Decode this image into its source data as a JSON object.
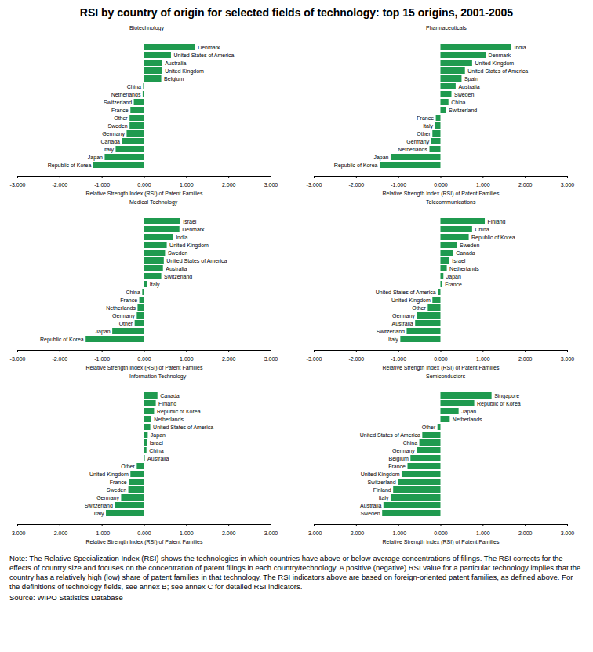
{
  "title": "RSI by country of origin for selected fields of technology: top 15 origins, 2001-2005",
  "note": "Note: The Relative Specialization Index (RSI) shows the technologies in which countries have above or below-average concentrations of filings. The RSI corrects for the effects of country size and focuses on the concentration of patent filings in each country/technology. A positive (negative) RSI value for a particular technology implies that the country has a relatively high (low) share of patent families in that technology. The RSI indicators above are based on foreign-oriented patent families, as defined above. For the definitions of technology fields, see annex B; see annex C for detailed RSI indicators.",
  "source": "Source: WIPO Statistics Database",
  "chart_data": [
    {
      "type": "bar",
      "title": "Biotechnology",
      "orientation": "horizontal",
      "color": "#1f9a4f",
      "tick_labels": "x",
      "xlabel": "Relative Strength Index (RSI) of Patent Families",
      "xlim": [
        -3,
        3
      ],
      "xticks": [
        {
          "value": -3,
          "label": "-3.000"
        },
        {
          "value": -2,
          "label": "-2.000"
        },
        {
          "value": -1,
          "label": "-1.000"
        },
        {
          "value": 0,
          "label": "0.000"
        },
        {
          "value": 1,
          "label": "1.000"
        },
        {
          "value": 2,
          "label": "2.000"
        },
        {
          "value": 3,
          "label": "3.000"
        }
      ],
      "categories": [
        "Denmark",
        "United States of America",
        "Australia",
        "United Kingdom",
        "Belgium",
        "China",
        "Netherlands",
        "Switzerland",
        "France",
        "Other",
        "Sweden",
        "Germany",
        "Canada",
        "Italy",
        "Japan",
        "Republic of Korea"
      ],
      "values": [
        1.21,
        0.64,
        0.43,
        0.43,
        0.41,
        -0.02,
        -0.03,
        -0.24,
        -0.32,
        -0.34,
        -0.34,
        -0.41,
        -0.52,
        -0.67,
        -0.93,
        -1.2
      ]
    },
    {
      "type": "bar",
      "title": "Pharmaceuticals",
      "orientation": "horizontal",
      "color": "#1f9a4f",
      "tick_labels": "x",
      "xlabel": "Relative Strength Index (RSI) of Patent Families",
      "xlim": [
        -3,
        3
      ],
      "xticks": [
        {
          "value": -3,
          "label": "-3.000"
        },
        {
          "value": -2,
          "label": "-2.000"
        },
        {
          "value": -1,
          "label": "-1.000"
        },
        {
          "value": 0,
          "label": "0.000"
        },
        {
          "value": 1,
          "label": "1.000"
        },
        {
          "value": 2,
          "label": "2.000"
        },
        {
          "value": 3,
          "label": "3.000"
        }
      ],
      "categories": [
        "India",
        "Denmark",
        "United Kingdom",
        "United States of America",
        "Spain",
        "Australia",
        "Sweden",
        "China",
        "Switzerland",
        "France",
        "Italy",
        "Other",
        "Germany",
        "Netherlands",
        "Japan",
        "Republic of Korea"
      ],
      "values": [
        1.68,
        1.07,
        0.75,
        0.58,
        0.5,
        0.36,
        0.26,
        0.19,
        0.13,
        -0.11,
        -0.13,
        -0.19,
        -0.22,
        -0.26,
        -1.18,
        -1.44
      ]
    },
    {
      "type": "bar",
      "title": "Medical Technology",
      "orientation": "horizontal",
      "color": "#1f9a4f",
      "tick_labels": "x",
      "xlabel": "Relative Strength Index (RSI) of Patent Families",
      "xlim": [
        -3,
        3
      ],
      "xticks": [
        {
          "value": -3,
          "label": "-3.000"
        },
        {
          "value": -2,
          "label": "-2.000"
        },
        {
          "value": -1,
          "label": "-1.000"
        },
        {
          "value": 0,
          "label": "0.000"
        },
        {
          "value": 1,
          "label": "1.000"
        },
        {
          "value": 2,
          "label": "2.000"
        },
        {
          "value": 3,
          "label": "3.000"
        }
      ],
      "categories": [
        "Israel",
        "Denmark",
        "India",
        "United Kingdom",
        "Sweden",
        "United States of America",
        "Australia",
        "Switzerland",
        "Italy",
        "China",
        "France",
        "Netherlands",
        "Germany",
        "Other",
        "Japan",
        "Republic of Korea"
      ],
      "values": [
        0.86,
        0.84,
        0.69,
        0.54,
        0.5,
        0.47,
        0.45,
        0.41,
        0.07,
        -0.04,
        -0.11,
        -0.15,
        -0.17,
        -0.22,
        -0.75,
        -1.38
      ]
    },
    {
      "type": "bar",
      "title": "Telecommunications",
      "orientation": "horizontal",
      "color": "#1f9a4f",
      "tick_labels": "x",
      "xlabel": "Relative Strength Index (RSI) of Patent Families",
      "xlim": [
        -3,
        3
      ],
      "xticks": [
        {
          "value": -3,
          "label": "-3.000"
        },
        {
          "value": -2,
          "label": "-2.000"
        },
        {
          "value": -1,
          "label": "-1.000"
        },
        {
          "value": 0,
          "label": "0.000"
        },
        {
          "value": 1,
          "label": "1.000"
        },
        {
          "value": 2,
          "label": "2.000"
        },
        {
          "value": 3,
          "label": "3.000"
        }
      ],
      "categories": [
        "Finland",
        "China",
        "Republic of Korea",
        "Sweden",
        "Canada",
        "Israel",
        "Netherlands",
        "Japan",
        "France",
        "United States of America",
        "United Kingdom",
        "Other",
        "Germany",
        "Australia",
        "Switzerland",
        "Italy"
      ],
      "values": [
        1.05,
        0.75,
        0.67,
        0.39,
        0.3,
        0.21,
        0.15,
        0.07,
        0.04,
        -0.06,
        -0.19,
        -0.3,
        -0.56,
        -0.6,
        -0.8,
        -0.95
      ]
    },
    {
      "type": "bar",
      "title": "Information Technology",
      "orientation": "horizontal",
      "color": "#1f9a4f",
      "tick_labels": "x",
      "xlabel": "Relative Strength Index (RSI) of Patent Families",
      "xlim": [
        -3,
        3
      ],
      "xticks": [
        {
          "value": -3,
          "label": "-3.000"
        },
        {
          "value": -2,
          "label": "-2.000"
        },
        {
          "value": -1,
          "label": "-1.000"
        },
        {
          "value": 0,
          "label": "0.000"
        },
        {
          "value": 1,
          "label": "1.000"
        },
        {
          "value": 2,
          "label": "2.000"
        },
        {
          "value": 3,
          "label": "3.000"
        }
      ],
      "categories": [
        "Canada",
        "Finland",
        "Republic of Korea",
        "Netherlands",
        "United States of America",
        "Japan",
        "Israel",
        "China",
        "Australia",
        "Other",
        "United Kingdom",
        "France",
        "Sweden",
        "Germany",
        "Switzerland",
        "Italy"
      ],
      "values": [
        0.32,
        0.28,
        0.24,
        0.17,
        0.15,
        0.09,
        0.07,
        0.06,
        0.02,
        -0.17,
        -0.32,
        -0.36,
        -0.37,
        -0.54,
        -0.69,
        -0.9
      ]
    },
    {
      "type": "bar",
      "title": "Semiconductors",
      "orientation": "horizontal",
      "color": "#1f9a4f",
      "tick_labels": "x",
      "xlabel": "Relative Strength Index (RSI) of Patent Families",
      "xlim": [
        -3,
        3
      ],
      "xticks": [
        {
          "value": -3,
          "label": "-3.000"
        },
        {
          "value": -2,
          "label": "-2.000"
        },
        {
          "value": -1,
          "label": "-1.000"
        },
        {
          "value": 0,
          "label": "0.000"
        },
        {
          "value": 1,
          "label": "1.000"
        },
        {
          "value": 2,
          "label": "2.000"
        },
        {
          "value": 3,
          "label": "3.000"
        }
      ],
      "categories": [
        "Singapore",
        "Republic of Korea",
        "Japan",
        "Netherlands",
        "Other",
        "United States of America",
        "China",
        "Germany",
        "Belgium",
        "France",
        "United Kingdom",
        "Switzerland",
        "Finland",
        "Italy",
        "Australia",
        "Sweden"
      ],
      "values": [
        1.21,
        0.8,
        0.43,
        0.22,
        -0.07,
        -0.43,
        -0.5,
        -0.56,
        -0.71,
        -0.78,
        -0.92,
        -1.01,
        -1.12,
        -1.18,
        -1.35,
        -1.38
      ]
    }
  ]
}
